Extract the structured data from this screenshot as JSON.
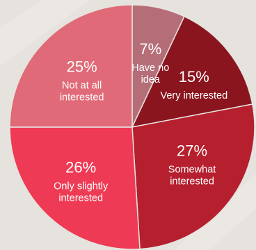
{
  "chart_data": {
    "type": "pie",
    "title": "",
    "slices": [
      {
        "value": 7,
        "pct_label": "7%",
        "label_lines": [
          "Have no",
          "idea"
        ],
        "color": "#b56e78"
      },
      {
        "value": 15,
        "pct_label": "15%",
        "label_lines": [
          "Very interested"
        ],
        "color": "#8a151e"
      },
      {
        "value": 27,
        "pct_label": "27%",
        "label_lines": [
          "Somewhat",
          "interested"
        ],
        "color": "#b51f2e"
      },
      {
        "value": 26,
        "pct_label": "26%",
        "label_lines": [
          "Only slightly",
          "interested"
        ],
        "color": "#ee3a54"
      },
      {
        "value": 25,
        "pct_label": "25%",
        "label_lines": [
          "Not at all",
          "interested"
        ],
        "color": "#e06a77"
      }
    ],
    "start": "12 o'clock",
    "direction": "clockwise",
    "legend": "none",
    "label_placement": "inside",
    "label_color": "#ffffff"
  }
}
